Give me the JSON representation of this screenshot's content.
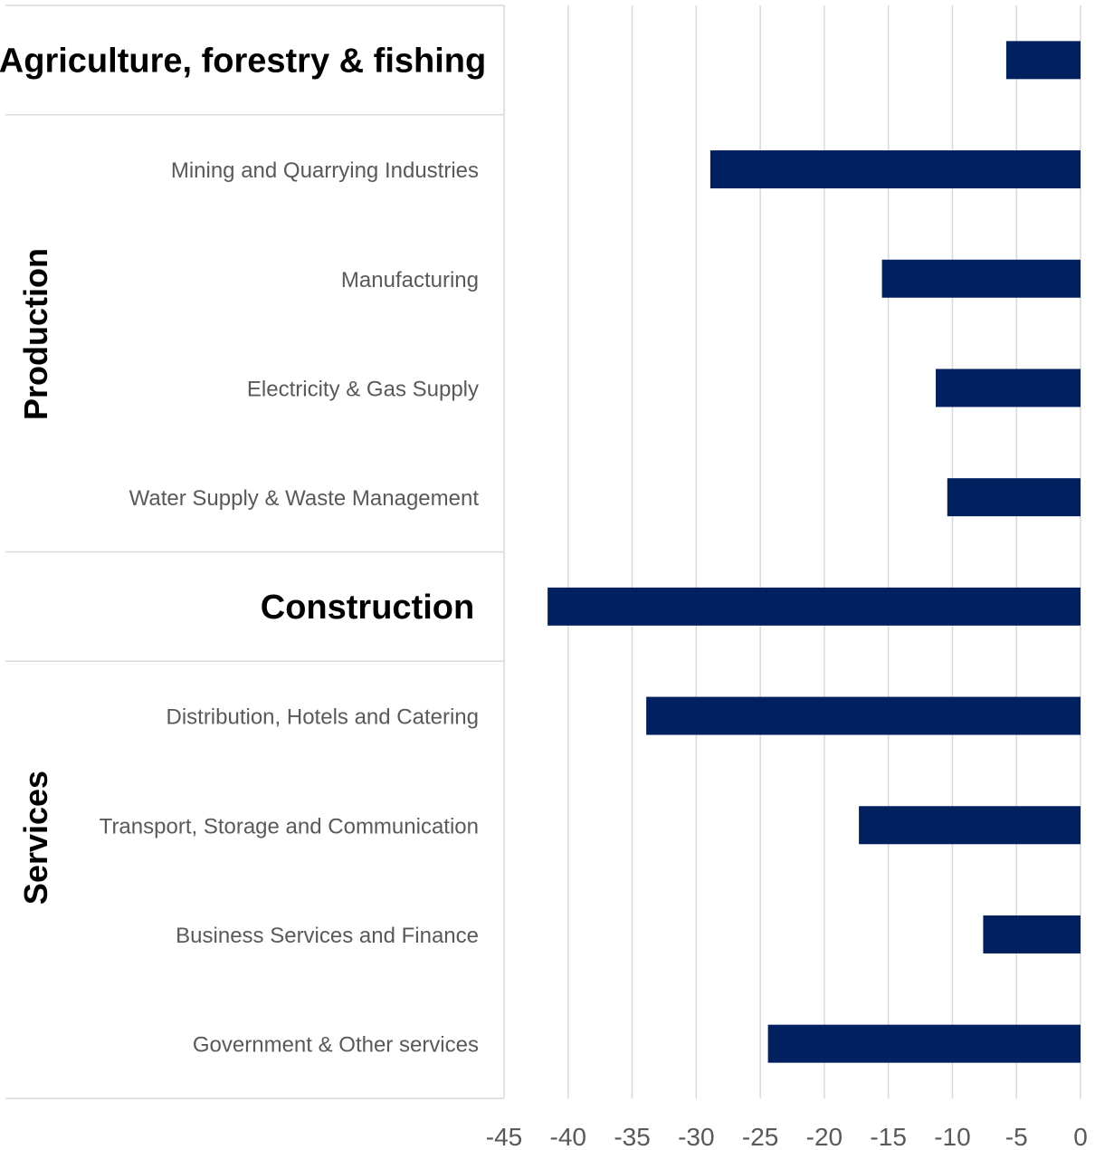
{
  "chart_data": {
    "type": "bar",
    "orientation": "horizontal",
    "categories": [
      "Agriculture, forestry & fishing",
      "Mining and Quarrying Industries",
      "Manufacturing",
      "Electricity & Gas Supply",
      "Water Supply & Waste Management",
      "Construction",
      "Distribution, Hotels and Catering",
      "Transport, Storage and Communication",
      "Business Services and Finance",
      "Government & Other services"
    ],
    "bold_categories": [
      "Agriculture, forestry & fishing",
      "Construction"
    ],
    "values": [
      -5.8,
      -28.9,
      -15.5,
      -11.3,
      -10.4,
      -41.6,
      -33.9,
      -17.3,
      -7.6,
      -24.4
    ],
    "groups": [
      {
        "name": "Production",
        "categories": [
          1,
          2,
          3,
          4
        ]
      },
      {
        "name": "Services",
        "categories": [
          6,
          7,
          8,
          9
        ]
      }
    ],
    "xlim": [
      -45,
      0
    ],
    "xticks": [
      "-45",
      "-40",
      "-35",
      "-30",
      "-25",
      "-20",
      "-15",
      "-10",
      "-5",
      "0"
    ],
    "title": "",
    "xlabel": "",
    "ylabel": "",
    "grid": "vertical",
    "bar_color": "#002060",
    "grid_color": "#d9d9d9"
  }
}
